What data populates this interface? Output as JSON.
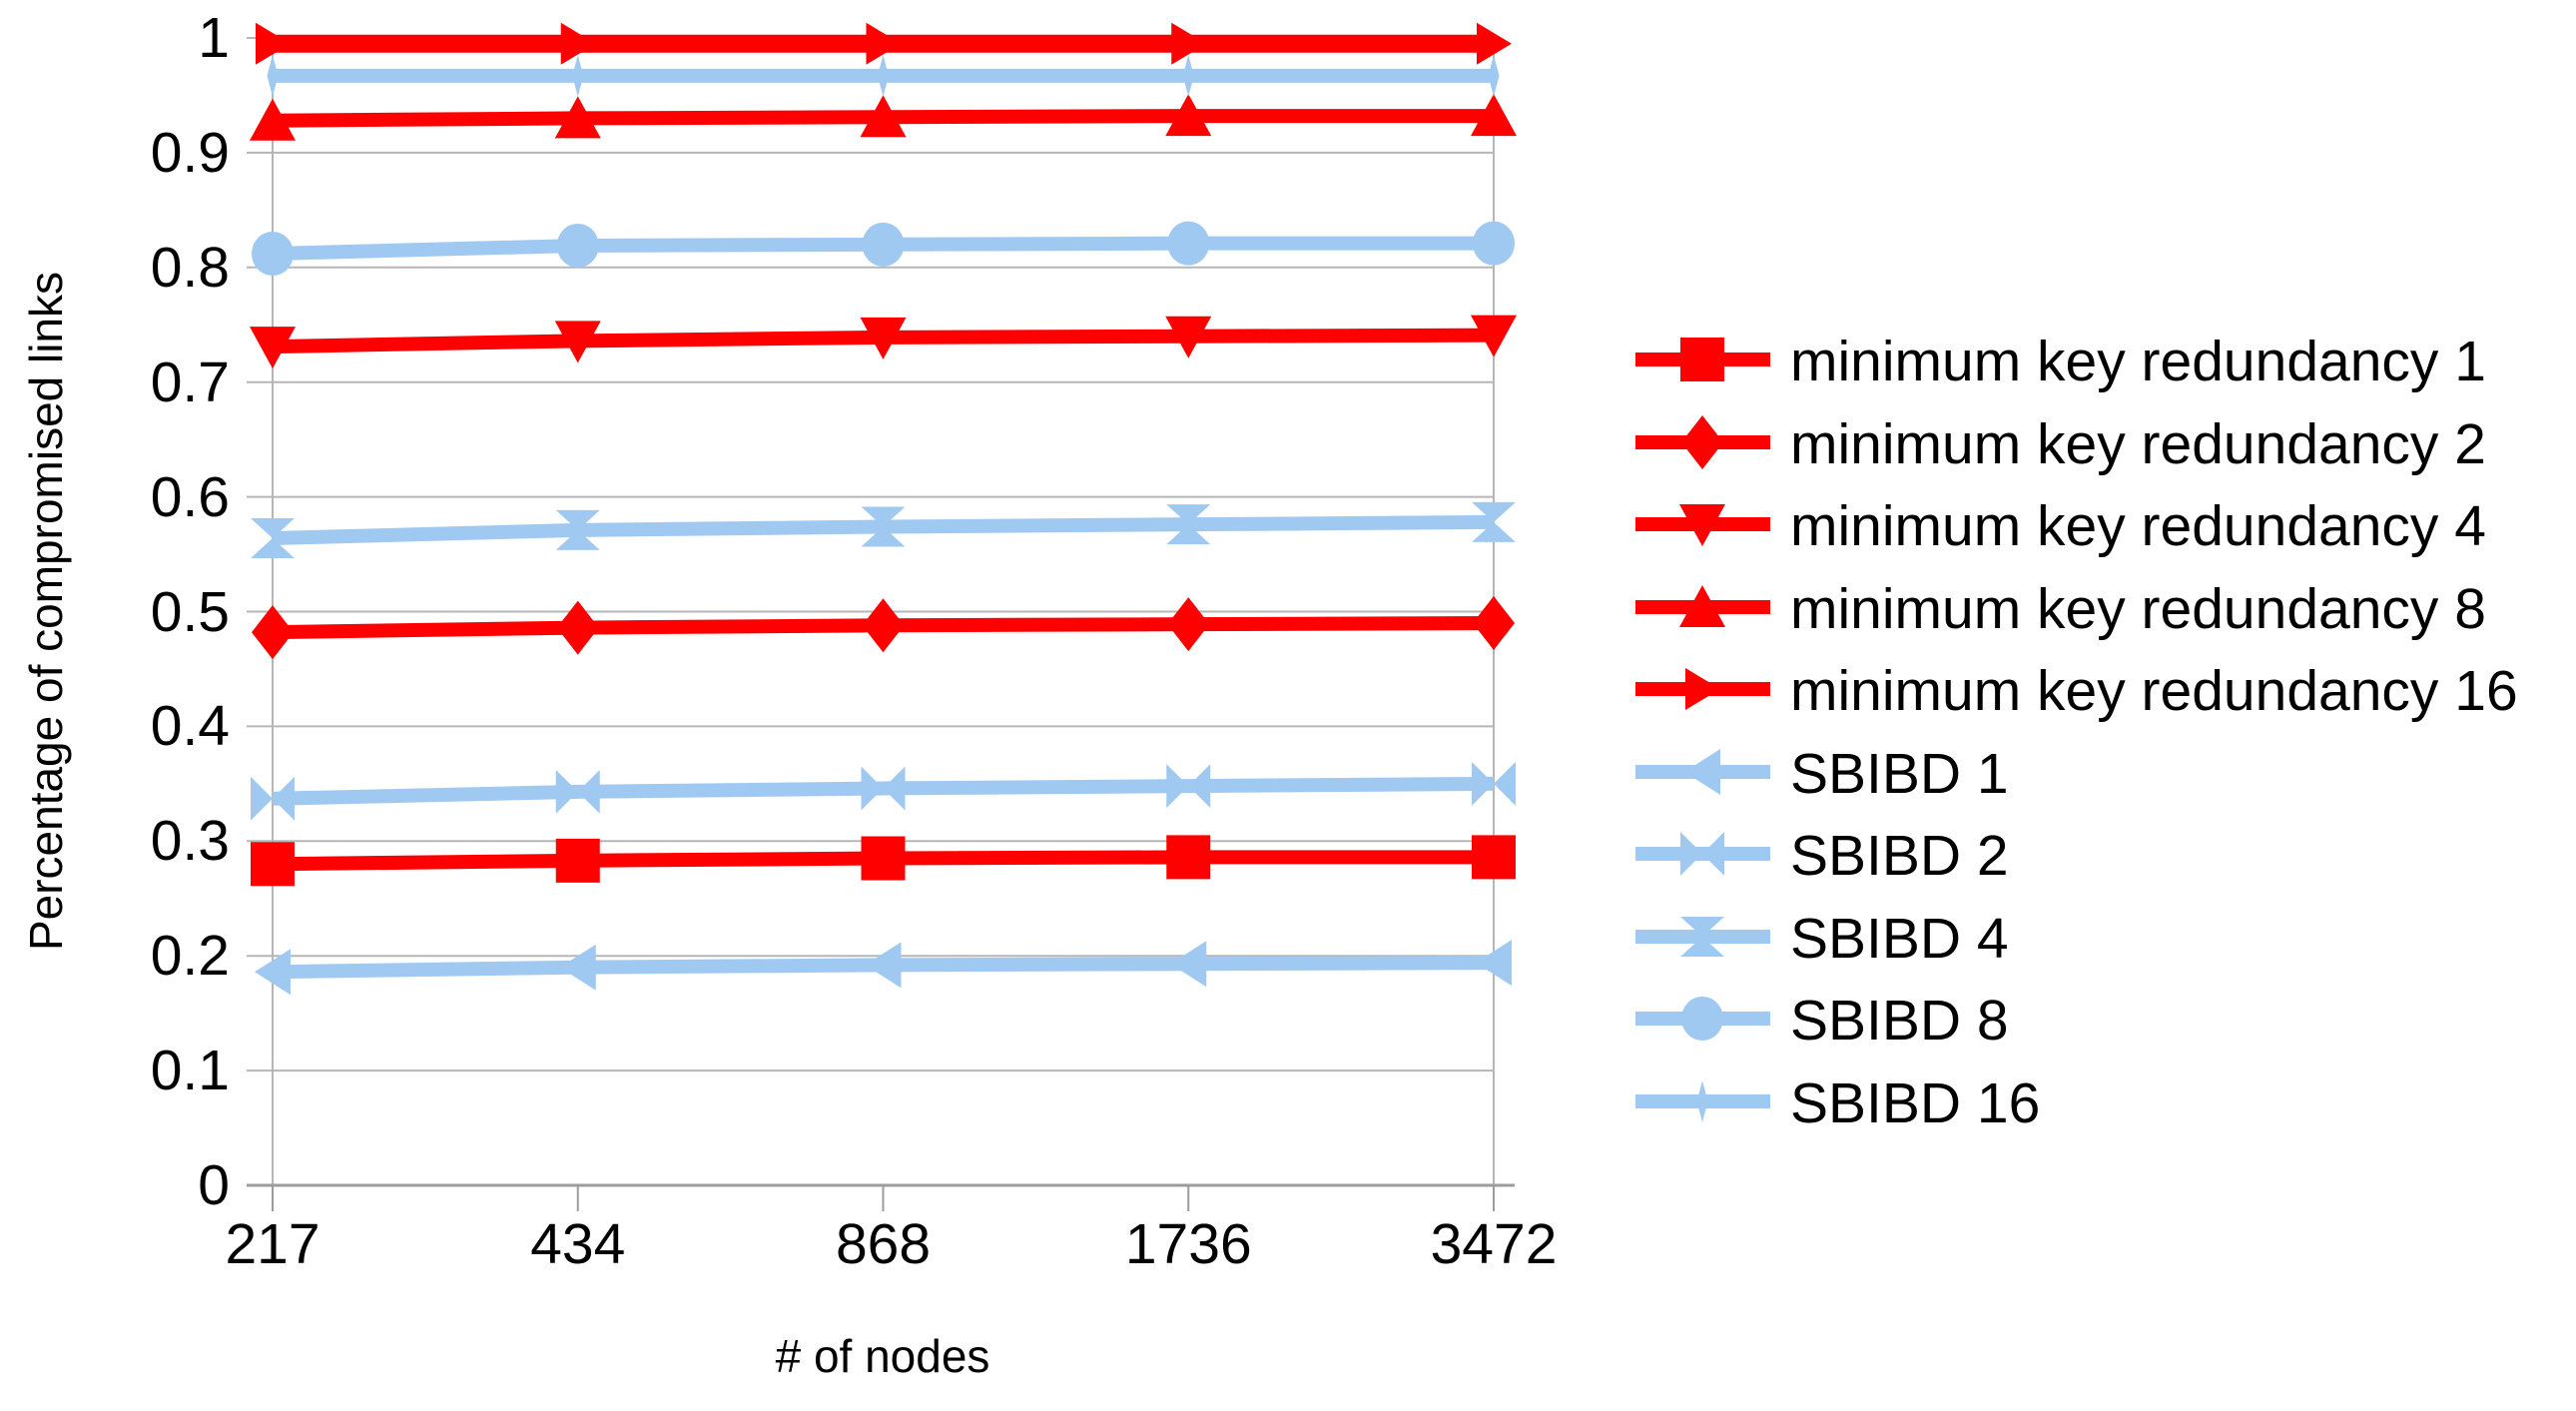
{
  "chart_data": {
    "type": "line",
    "title": "",
    "xlabel": "# of nodes",
    "ylabel": "Percentage of compromised links",
    "categories": [
      "217",
      "434",
      "868",
      "1736",
      "3472"
    ],
    "ylim": [
      0,
      1
    ],
    "y_tick_labels": [
      "1",
      "0.9",
      "0.8",
      "0.7",
      "0.6",
      "0.5",
      "0.4",
      "0.3",
      "0.2",
      "0.1",
      "0"
    ],
    "grid": "horizontal",
    "legend_position": "right",
    "colors": {
      "red_series": "#ff0000",
      "blue_series": "#a0c9f2",
      "gridline": "#b6b6b6",
      "axis_line": "#9c9c9c",
      "text": "#000000"
    },
    "series": [
      {
        "name": "minimum key redundancy 1",
        "color": "#ff0000",
        "marker": "square",
        "line_width": 14,
        "values": [
          0.28,
          0.283,
          0.285,
          0.286,
          0.286
        ]
      },
      {
        "name": "minimum key redundancy 2",
        "color": "#ff0000",
        "marker": "diamond",
        "line_width": 14,
        "values": [
          0.482,
          0.486,
          0.488,
          0.489,
          0.49
        ]
      },
      {
        "name": "minimum key redundancy 4",
        "color": "#ff0000",
        "marker": "triangle-down",
        "line_width": 14,
        "values": [
          0.731,
          0.736,
          0.739,
          0.74,
          0.741
        ]
      },
      {
        "name": "minimum key redundancy 8",
        "color": "#ff0000",
        "marker": "triangle-up",
        "line_width": 14,
        "values": [
          0.928,
          0.93,
          0.931,
          0.932,
          0.932
        ]
      },
      {
        "name": "minimum key redundancy 16",
        "color": "#ff0000",
        "marker": "triangle-right",
        "line_width": 18,
        "values": [
          0.995,
          0.995,
          0.995,
          0.995,
          0.995
        ]
      },
      {
        "name": "SBIBD 1",
        "color": "#a0c9f2",
        "marker": "triangle-left",
        "line_width": 14,
        "values": [
          0.186,
          0.19,
          0.192,
          0.193,
          0.194
        ]
      },
      {
        "name": "SBIBD 2",
        "color": "#a0c9f2",
        "marker": "bowtie-h",
        "line_width": 14,
        "values": [
          0.337,
          0.343,
          0.346,
          0.348,
          0.35
        ]
      },
      {
        "name": "SBIBD 4",
        "color": "#a0c9f2",
        "marker": "bowtie-v",
        "line_width": 14,
        "values": [
          0.564,
          0.571,
          0.574,
          0.576,
          0.578
        ]
      },
      {
        "name": "SBIBD 8",
        "color": "#a0c9f2",
        "marker": "circle",
        "line_width": 14,
        "values": [
          0.812,
          0.819,
          0.82,
          0.821,
          0.821
        ]
      },
      {
        "name": "SBIBD 16",
        "color": "#a0c9f2",
        "marker": "narrow-diamond",
        "line_width": 14,
        "values": [
          0.967,
          0.967,
          0.967,
          0.967,
          0.967
        ]
      }
    ]
  }
}
